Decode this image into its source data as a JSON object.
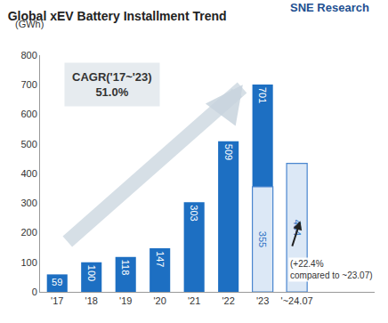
{
  "chart_data": {
    "type": "bar",
    "title": "Global xEV Battery Installment Trend",
    "logo": "SNE Research",
    "y_label": "(GWh)",
    "categories": [
      "'17",
      "'18",
      "'19",
      "'20",
      "'21",
      "'22",
      "'23",
      "'~24.07"
    ],
    "series": [
      {
        "values": [
          59,
          100,
          118,
          147,
          303,
          509,
          701,
          null
        ],
        "color": "#1d6fc2"
      },
      {
        "values": [
          null,
          null,
          null,
          null,
          null,
          null,
          355,
          434
        ],
        "color": "#dce8f6"
      }
    ],
    "ylim": [
      0,
      800
    ],
    "yticks": [
      0,
      100,
      200,
      300,
      400,
      500,
      600,
      700,
      800
    ],
    "grid": false,
    "data_labels": true,
    "annotations": [
      {
        "text": [
          "CAGR('17~'23)",
          "51.0%"
        ]
      },
      {
        "text": [
          "(+22.4%",
          "compared to ~23.07)"
        ]
      }
    ]
  }
}
